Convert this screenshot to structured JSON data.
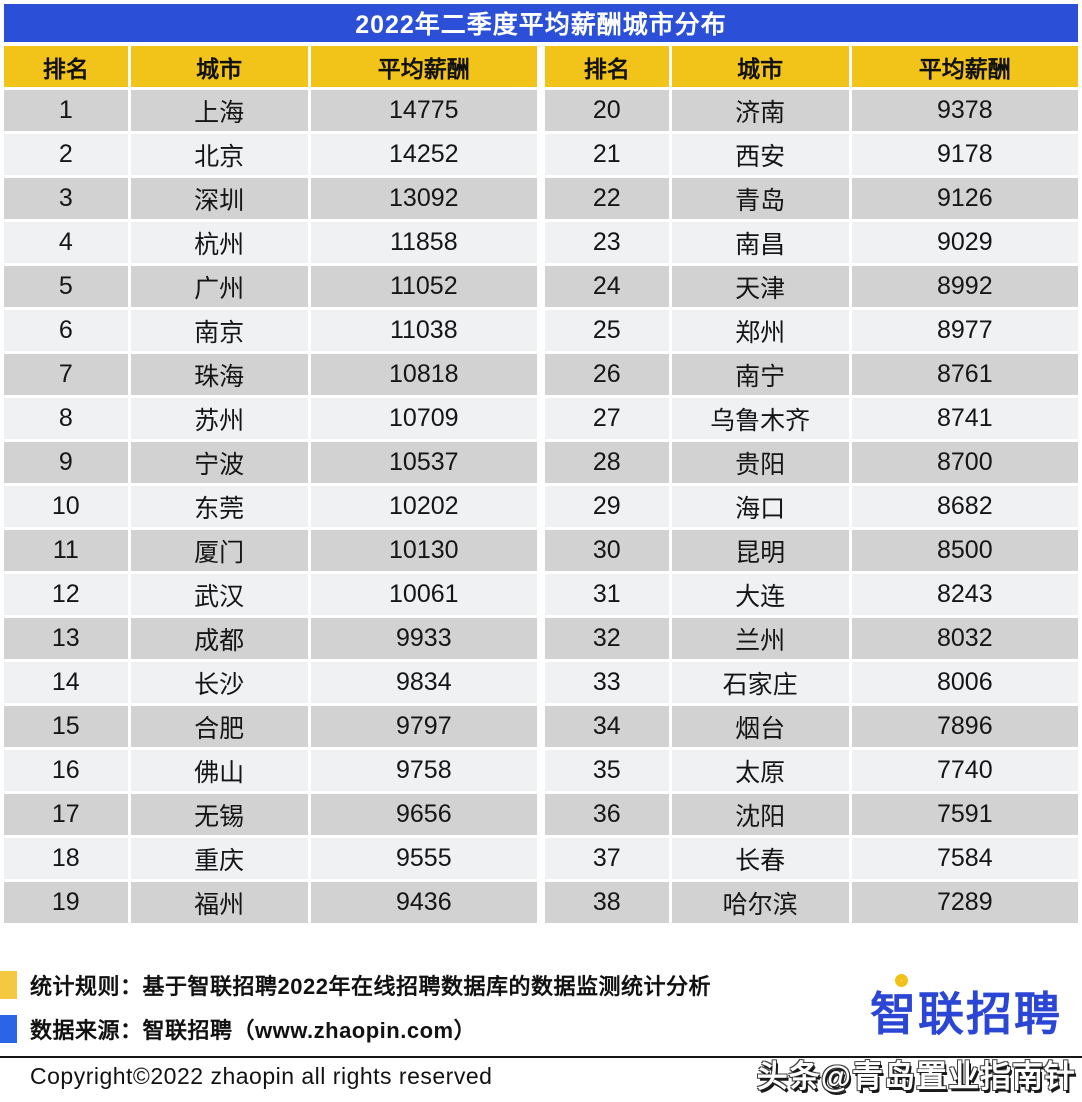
{
  "title": "2022年二季度平均薪酬城市分布",
  "chart_data": {
    "type": "table",
    "title": "2022年二季度平均薪酬城市分布",
    "columns": [
      "排名",
      "城市",
      "平均薪酬"
    ],
    "layout": "two side-by-side panels: ranks 1-19 on left, ranks 20-38 on right; alternating gray row stripes",
    "rows": [
      [
        1,
        "上海",
        14775
      ],
      [
        2,
        "北京",
        14252
      ],
      [
        3,
        "深圳",
        13092
      ],
      [
        4,
        "杭州",
        11858
      ],
      [
        5,
        "广州",
        11052
      ],
      [
        6,
        "南京",
        11038
      ],
      [
        7,
        "珠海",
        10818
      ],
      [
        8,
        "苏州",
        10709
      ],
      [
        9,
        "宁波",
        10537
      ],
      [
        10,
        "东莞",
        10202
      ],
      [
        11,
        "厦门",
        10130
      ],
      [
        12,
        "武汉",
        10061
      ],
      [
        13,
        "成都",
        9933
      ],
      [
        14,
        "长沙",
        9834
      ],
      [
        15,
        "合肥",
        9797
      ],
      [
        16,
        "佛山",
        9758
      ],
      [
        17,
        "无锡",
        9656
      ],
      [
        18,
        "重庆",
        9555
      ],
      [
        19,
        "福州",
        9436
      ],
      [
        20,
        "济南",
        9378
      ],
      [
        21,
        "西安",
        9178
      ],
      [
        22,
        "青岛",
        9126
      ],
      [
        23,
        "南昌",
        9029
      ],
      [
        24,
        "天津",
        8992
      ],
      [
        25,
        "郑州",
        8977
      ],
      [
        26,
        "南宁",
        8761
      ],
      [
        27,
        "乌鲁木齐",
        8741
      ],
      [
        28,
        "贵阳",
        8700
      ],
      [
        29,
        "海口",
        8682
      ],
      [
        30,
        "昆明",
        8500
      ],
      [
        31,
        "大连",
        8243
      ],
      [
        32,
        "兰州",
        8032
      ],
      [
        33,
        "石家庄",
        8006
      ],
      [
        34,
        "烟台",
        7896
      ],
      [
        35,
        "太原",
        7740
      ],
      [
        36,
        "沈阳",
        7591
      ],
      [
        37,
        "长春",
        7584
      ],
      [
        38,
        "哈尔滨",
        7289
      ]
    ]
  },
  "footnotes": [
    {
      "bullet": "yellow",
      "label": "统计规则：基于智联招聘2022年在线招聘数据库的数据监测统计分析"
    },
    {
      "bullet": "blue",
      "label": "数据来源：智联招聘（www.zhaopin.com）"
    }
  ],
  "copyright": "Copyright©2022 zhaopin all rights reserved",
  "logo": {
    "text": "智联招聘"
  },
  "watermark": "头条@青岛置业指南针",
  "colors": {
    "title_bar_blue": "#2b4fd7",
    "header_yellow": "#f2c319",
    "row_dark": "#d2d2d2",
    "row_light": "#f0f1f3",
    "footnote_yellow": "#f5c842",
    "footnote_blue": "#2a65e8",
    "logo_blue": "#2b46d4",
    "logo_yellow": "#f2c21a"
  }
}
